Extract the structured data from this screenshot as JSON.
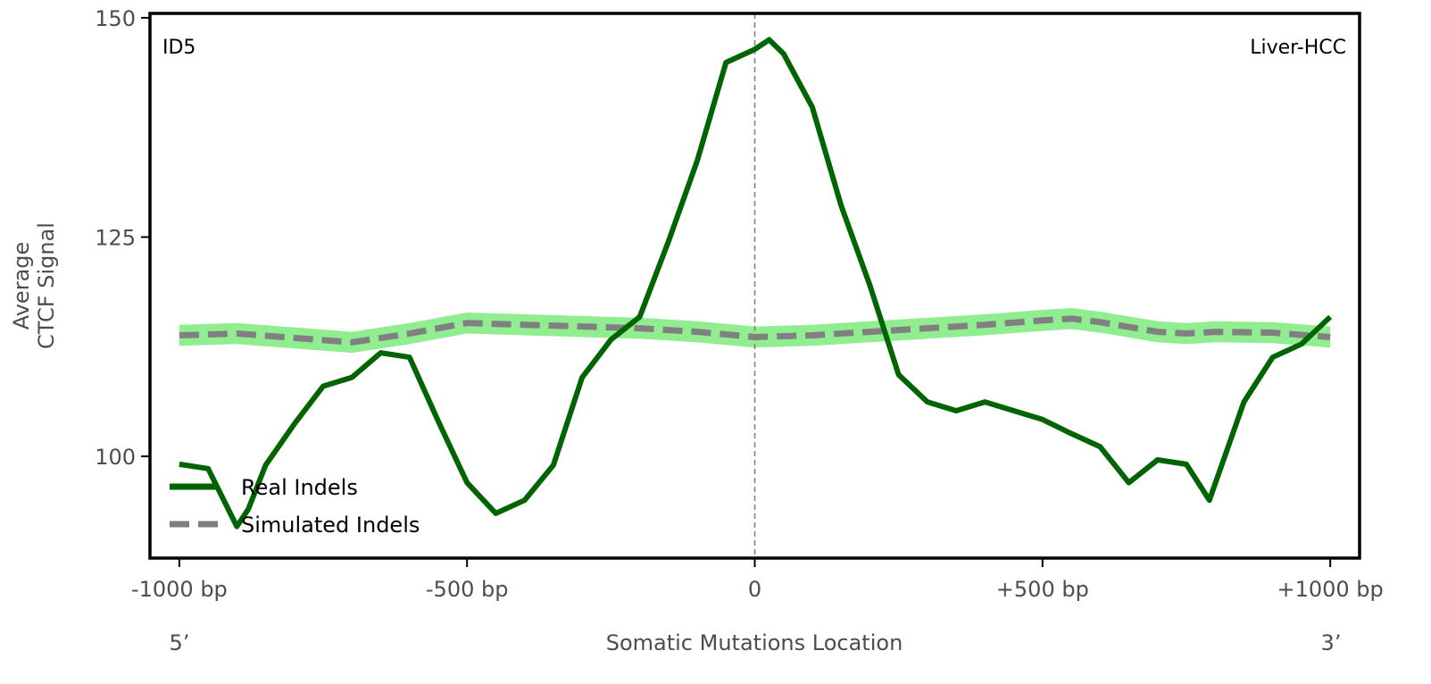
{
  "chart_data": {
    "type": "line",
    "ylabel_lines": [
      "Average",
      "CTCF Signal"
    ],
    "xlabel": "Somatic Mutations Location",
    "x_end_labels": {
      "left": "5’",
      "right": "3’"
    },
    "corner_left": "ID5",
    "corner_right": "Liver-HCC",
    "xlim": [
      -1051,
      1051
    ],
    "ylim": [
      88.4,
      150.5
    ],
    "xticks": [
      {
        "value": -1000,
        "label": "-1000 bp"
      },
      {
        "value": -500,
        "label": "-500 bp"
      },
      {
        "value": 0,
        "label": "0"
      },
      {
        "value": 500,
        "label": "+500 bp"
      },
      {
        "value": 1000,
        "label": "+1000 bp"
      }
    ],
    "yticks": [
      {
        "value": 100,
        "label": "100"
      },
      {
        "value": 125,
        "label": "125"
      },
      {
        "value": 150,
        "label": "150"
      }
    ],
    "vline_x": 0,
    "legend": {
      "placement": "lower-left",
      "entries": [
        "Real Indels",
        "Simulated Indels"
      ]
    },
    "colors": {
      "real": "#006400",
      "simulated": "#808080",
      "band": "#90ee90",
      "vline": "#808080"
    },
    "series": [
      {
        "name": "Real Indels",
        "x": [
          -1000,
          -950,
          -900,
          -880,
          -850,
          -800,
          -750,
          -700,
          -650,
          -600,
          -550,
          -500,
          -450,
          -400,
          -350,
          -300,
          -250,
          -200,
          -150,
          -100,
          -50,
          0,
          25,
          50,
          100,
          150,
          200,
          250,
          300,
          350,
          400,
          450,
          500,
          550,
          600,
          650,
          700,
          750,
          790,
          850,
          900,
          950,
          1000
        ],
        "values": [
          99.1,
          98.6,
          92,
          94,
          99,
          103.7,
          108,
          109,
          111.8,
          111.3,
          104,
          97,
          93.5,
          95,
          99,
          109,
          113.3,
          115.9,
          124.5,
          133.7,
          144.9,
          146.4,
          147.5,
          145.9,
          139.8,
          128.6,
          119.5,
          109.3,
          106.2,
          105.2,
          106.2,
          105.2,
          104.2,
          102.6,
          101.1,
          97,
          99.6,
          99.1,
          95,
          106.2,
          111.3,
          112.8,
          115.9
        ]
      },
      {
        "name": "Simulated Indels",
        "x": [
          -1000,
          -900,
          -800,
          -700,
          -600,
          -500,
          -400,
          -300,
          -200,
          -100,
          0,
          100,
          200,
          300,
          400,
          500,
          550,
          600,
          700,
          750,
          800,
          900,
          1000
        ],
        "values": [
          113.8,
          114,
          113.5,
          113,
          114,
          115.2,
          115,
          114.8,
          114.6,
          114.2,
          113.6,
          113.8,
          114.2,
          114.6,
          115,
          115.5,
          115.7,
          115.3,
          114.2,
          114,
          114.2,
          114.1,
          113.6
        ],
        "band_halfwidth": 1.2
      }
    ]
  }
}
